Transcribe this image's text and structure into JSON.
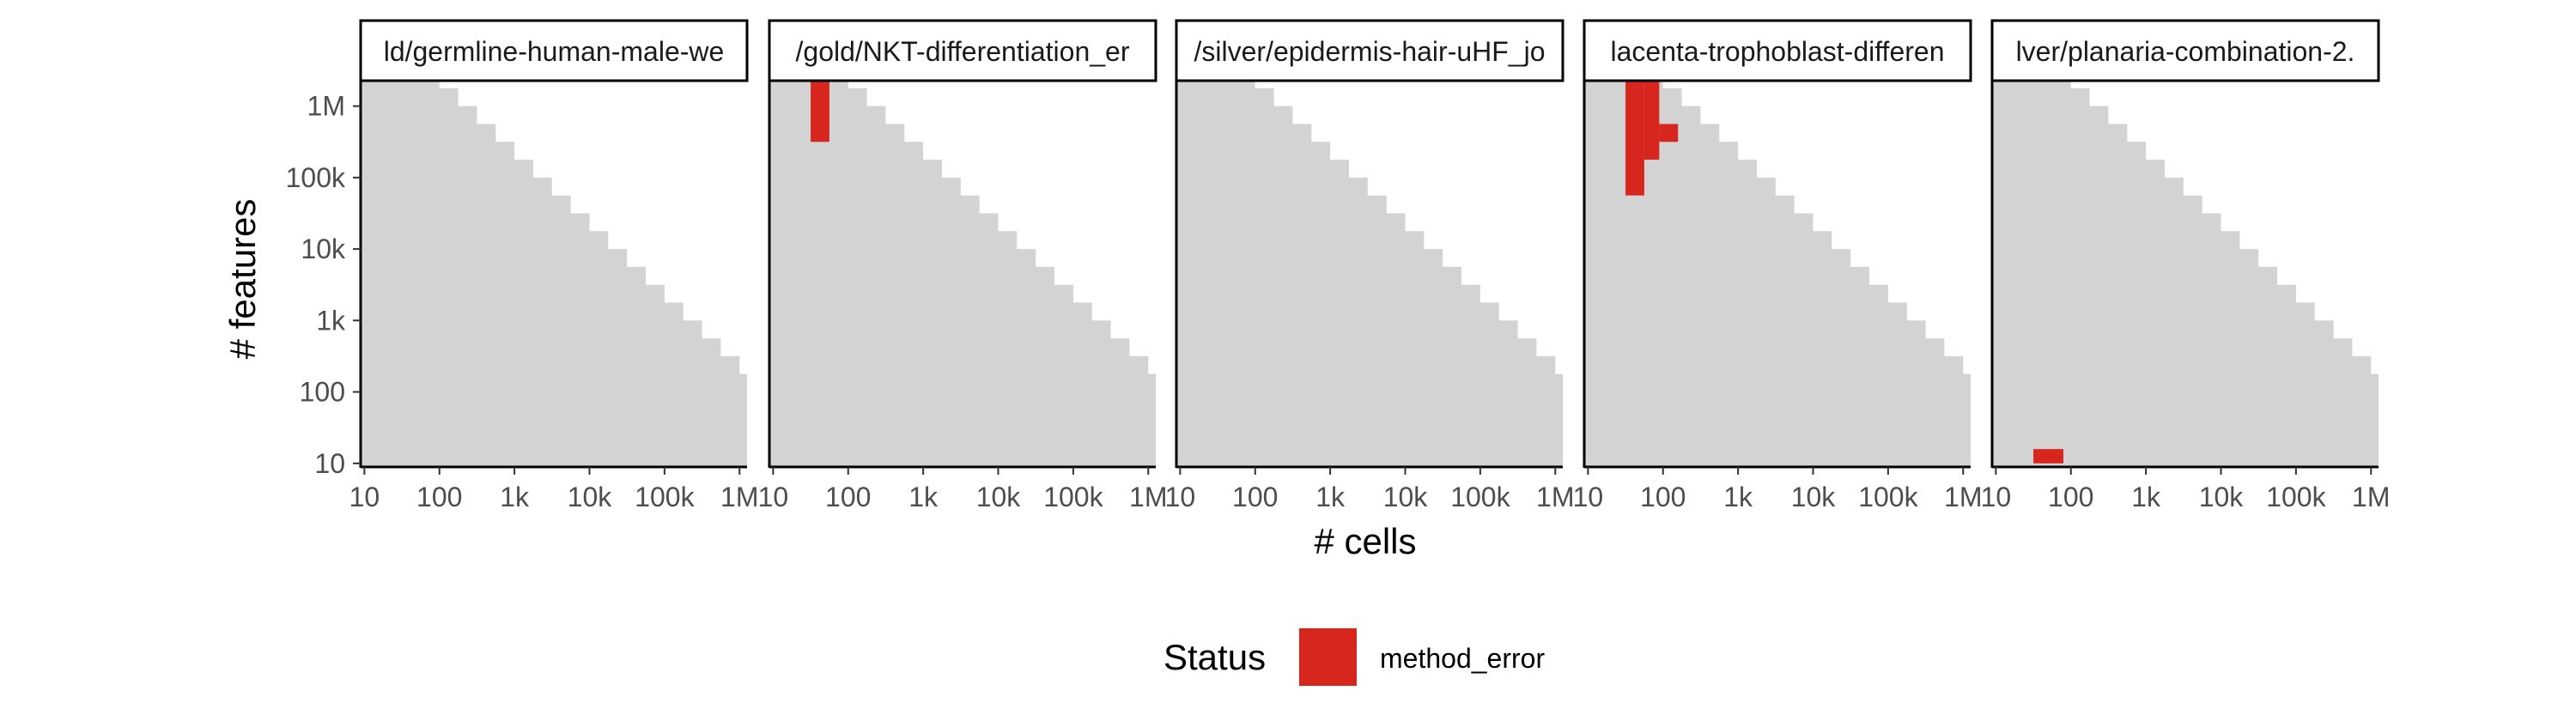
{
  "chart_data": {
    "type": "heatmap",
    "xlabel": "# cells",
    "ylabel": "# features",
    "x_ticks": [
      "10",
      "100",
      "1k",
      "10k",
      "100k",
      "1M"
    ],
    "y_ticks": [
      "10",
      "100",
      "1k",
      "10k",
      "100k",
      "1M"
    ],
    "x_scale": "log10",
    "y_scale": "log10",
    "xlim_log10": [
      0.95,
      6.1
    ],
    "ylim_log10": [
      0.95,
      6.5
    ],
    "step_log10": 0.25,
    "coverage_rule": "log10(cells) + log10(features) <= 8.25",
    "background_color": "#d3d3d3",
    "legend": {
      "title": "Status",
      "placement": "bottom",
      "entries": [
        {
          "label": "method_error",
          "color": "#d7261e"
        }
      ]
    },
    "panels": [
      {
        "title": "ld/germline-human-male-we",
        "error_cells": []
      },
      {
        "title": "/gold/NKT-differentiation_er",
        "error_cells": [
          {
            "x": [
              1.5,
              1.75
            ],
            "y": [
              5.5,
              6.5
            ]
          }
        ]
      },
      {
        "title": "/silver/epidermis-hair-uHF_jo",
        "error_cells": []
      },
      {
        "title": "lacenta-trophoblast-differen",
        "error_cells": [
          {
            "x": [
              1.5,
              1.75
            ],
            "y": [
              4.75,
              6.5
            ]
          },
          {
            "x": [
              1.75,
              1.95
            ],
            "y": [
              5.25,
              6.5
            ]
          },
          {
            "x": [
              1.95,
              2.2
            ],
            "y": [
              5.5,
              5.75
            ]
          }
        ]
      },
      {
        "title": "lver/planaria-combination-2.",
        "error_cells": [
          {
            "x": [
              1.5,
              1.9
            ],
            "y": [
              1.0,
              1.2
            ]
          }
        ]
      }
    ]
  }
}
